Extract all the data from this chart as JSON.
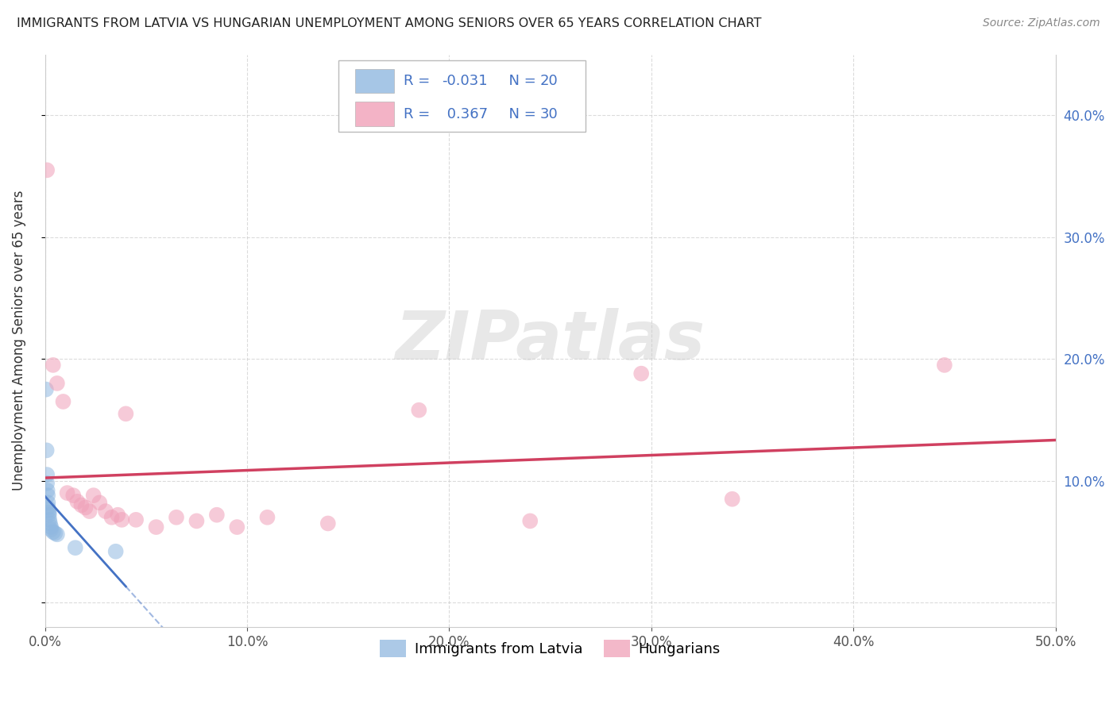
{
  "title": "IMMIGRANTS FROM LATVIA VS HUNGARIAN UNEMPLOYMENT AMONG SENIORS OVER 65 YEARS CORRELATION CHART",
  "source": "Source: ZipAtlas.com",
  "ylabel": "Unemployment Among Seniors over 65 years",
  "xlim": [
    0.0,
    0.5
  ],
  "ylim": [
    -0.02,
    0.45
  ],
  "x_ticks": [
    0.0,
    0.1,
    0.2,
    0.3,
    0.4,
    0.5
  ],
  "x_tick_labels": [
    "0.0%",
    "10.0%",
    "20.0%",
    "30.0%",
    "40.0%",
    "50.0%"
  ],
  "y_ticks": [
    0.0,
    0.1,
    0.2,
    0.3,
    0.4
  ],
  "y_tick_labels_right": [
    "",
    "10.0%",
    "20.0%",
    "30.0%",
    "40.0%"
  ],
  "blue_scatter": [
    [
      0.0005,
      0.175
    ],
    [
      0.0008,
      0.125
    ],
    [
      0.001,
      0.105
    ],
    [
      0.001,
      0.098
    ],
    [
      0.0012,
      0.092
    ],
    [
      0.0014,
      0.088
    ],
    [
      0.0015,
      0.082
    ],
    [
      0.0015,
      0.078
    ],
    [
      0.0018,
      0.076
    ],
    [
      0.002,
      0.074
    ],
    [
      0.002,
      0.072
    ],
    [
      0.0022,
      0.068
    ],
    [
      0.0025,
      0.065
    ],
    [
      0.003,
      0.062
    ],
    [
      0.003,
      0.06
    ],
    [
      0.004,
      0.058
    ],
    [
      0.005,
      0.057
    ],
    [
      0.006,
      0.056
    ],
    [
      0.015,
      0.045
    ],
    [
      0.035,
      0.042
    ]
  ],
  "pink_scatter": [
    [
      0.001,
      0.355
    ],
    [
      0.004,
      0.195
    ],
    [
      0.006,
      0.18
    ],
    [
      0.009,
      0.165
    ],
    [
      0.011,
      0.09
    ],
    [
      0.014,
      0.088
    ],
    [
      0.016,
      0.083
    ],
    [
      0.018,
      0.08
    ],
    [
      0.02,
      0.078
    ],
    [
      0.022,
      0.075
    ],
    [
      0.024,
      0.088
    ],
    [
      0.027,
      0.082
    ],
    [
      0.03,
      0.075
    ],
    [
      0.033,
      0.07
    ],
    [
      0.036,
      0.072
    ],
    [
      0.038,
      0.068
    ],
    [
      0.04,
      0.155
    ],
    [
      0.045,
      0.068
    ],
    [
      0.055,
      0.062
    ],
    [
      0.065,
      0.07
    ],
    [
      0.075,
      0.067
    ],
    [
      0.085,
      0.072
    ],
    [
      0.095,
      0.062
    ],
    [
      0.11,
      0.07
    ],
    [
      0.14,
      0.065
    ],
    [
      0.185,
      0.158
    ],
    [
      0.24,
      0.067
    ],
    [
      0.295,
      0.188
    ],
    [
      0.34,
      0.085
    ],
    [
      0.445,
      0.195
    ]
  ],
  "blue_color": "#90b8e0",
  "pink_color": "#f0a0b8",
  "blue_line_color": "#4472c4",
  "pink_line_color": "#d04060",
  "blue_r": -0.031,
  "pink_r": 0.367,
  "blue_n": 20,
  "pink_n": 30,
  "background_color": "#ffffff",
  "watermark_text": "ZIPatlas",
  "grid_color": "#cccccc",
  "legend_text_color": "#4472c4",
  "right_axis_color": "#4472c4"
}
